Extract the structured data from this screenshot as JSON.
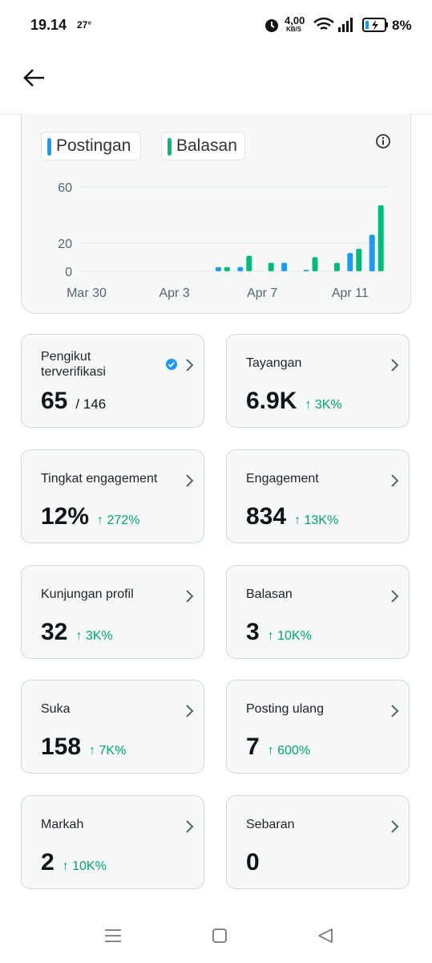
{
  "status_bar": {
    "time": "19.14",
    "temp": "27°",
    "speed": "4,00",
    "speed_unit": "KB/S",
    "battery": "8%"
  },
  "chart_data": {
    "type": "bar",
    "categories": [
      "Mar 30",
      null,
      null,
      null,
      "Apr 3",
      null,
      null,
      null,
      "Apr 7",
      null,
      null,
      null,
      "Apr 11",
      null
    ],
    "series": [
      {
        "name": "Postingan",
        "color": "#1d9bf0",
        "values": [
          0,
          0,
          0,
          0,
          0,
          0,
          3,
          3,
          0,
          6,
          1,
          0,
          13,
          26
        ]
      },
      {
        "name": "Balasan",
        "color": "#00ba7c",
        "values": [
          0,
          0,
          0,
          0,
          0,
          0,
          3,
          11,
          6,
          0,
          10,
          6,
          16,
          47
        ]
      }
    ],
    "ylim": [
      0,
      60
    ],
    "yticks": [
      0,
      20,
      60
    ],
    "grid": true
  },
  "cards": [
    {
      "label": "Pengikut terverifikasi",
      "value": "65",
      "total": "/ 146"
    },
    {
      "label": "Tayangan",
      "value": "6.9K",
      "change": "↑ 3K%"
    },
    {
      "label": "Tingkat engagement",
      "value": "12%",
      "change": "↑ 272%"
    },
    {
      "label": "Engagement",
      "value": "834",
      "change": "↑ 13K%"
    },
    {
      "label": "Kunjungan profil",
      "value": "32",
      "change": "↑ 3K%"
    },
    {
      "label": "Balasan",
      "value": "3",
      "change": "↑ 10K%"
    },
    {
      "label": "Suka",
      "value": "158",
      "change": "↑ 7K%"
    },
    {
      "label": "Posting ulang",
      "value": "7",
      "change": "↑ 600%"
    },
    {
      "label": "Markah",
      "value": "2",
      "change": "↑ 10K%"
    },
    {
      "label": "Sebaran",
      "value": "0"
    }
  ]
}
